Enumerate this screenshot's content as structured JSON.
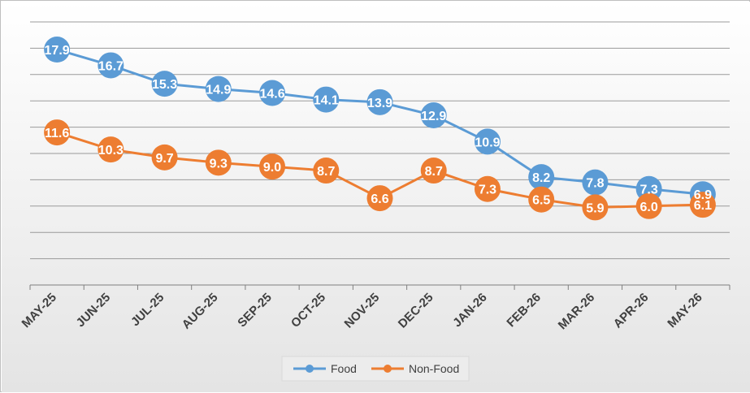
{
  "chart_data": {
    "type": "line",
    "categories": [
      "MAY-25",
      "JUN-25",
      "JUL-25",
      "AUG-25",
      "SEP-25",
      "OCT-25",
      "NOV-25",
      "DEC-25",
      "JAN-26",
      "FEB-26",
      "MAR-26",
      "APR-26",
      "MAY-26"
    ],
    "series": [
      {
        "name": "Food",
        "values": [
          17.9,
          16.7,
          15.3,
          14.9,
          14.6,
          14.1,
          13.9,
          12.9,
          10.9,
          8.2,
          7.8,
          7.3,
          6.9
        ],
        "color": "#5b9bd5"
      },
      {
        "name": "Non-Food",
        "values": [
          11.6,
          10.3,
          9.7,
          9.3,
          9.0,
          8.7,
          6.6,
          8.7,
          7.3,
          6.5,
          5.9,
          6.0,
          6.1
        ],
        "color": "#ed7d31"
      }
    ],
    "ylim": [
      0,
      20
    ],
    "y_gridline_step": 2,
    "y_axis_labels_shown": false,
    "grid": true,
    "legend_position": "bottom",
    "data_labels": true,
    "background": "#e8e8e8"
  }
}
